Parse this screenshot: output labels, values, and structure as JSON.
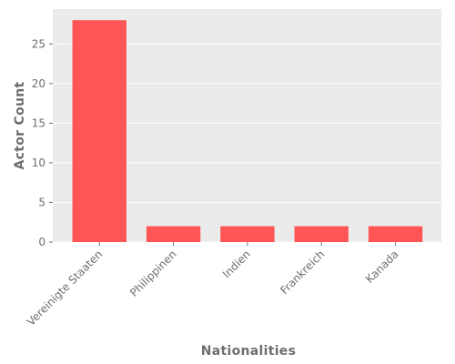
{
  "chart_data": {
    "type": "bar",
    "categories": [
      "Vereinigte Staaten",
      "Philippinen",
      "Indien",
      "Frankreich",
      "Kanada"
    ],
    "values": [
      28,
      2,
      2,
      2,
      2
    ],
    "xlabel": "Nationalities",
    "ylabel": "Actor Count",
    "ylim": [
      0,
      29.4
    ],
    "yticks": [
      0,
      5,
      10,
      15,
      20,
      25
    ],
    "grid": true,
    "colors": {
      "bar": "#ff5555",
      "background": "#ebebeb",
      "grid": "#ffffff"
    }
  }
}
